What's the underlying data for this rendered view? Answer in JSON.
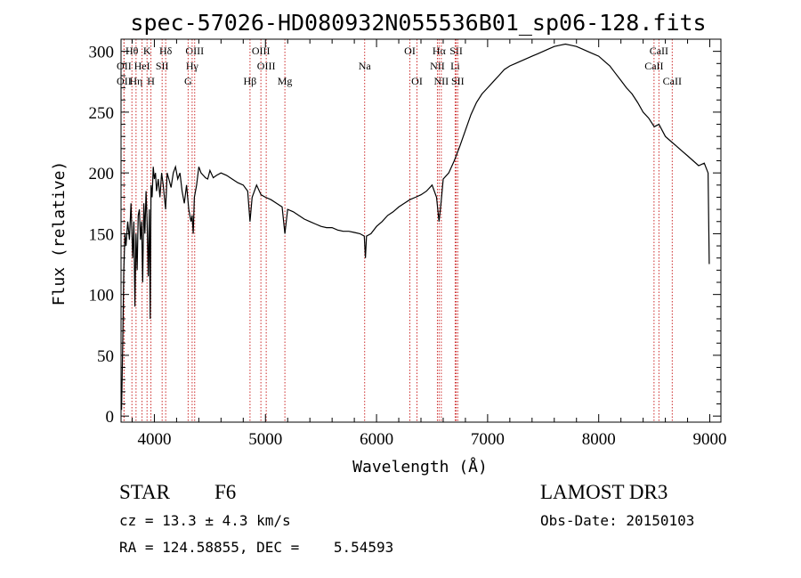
{
  "chart_data": {
    "type": "line",
    "title": "spec-57026-HD080932N055536B01_sp06-128.fits",
    "xlabel": "Wavelength (Å)",
    "ylabel": "Flux (relative)",
    "xlim": [
      3700,
      9100
    ],
    "ylim": [
      -5,
      310
    ],
    "xticks": [
      4000,
      5000,
      6000,
      7000,
      8000,
      9000
    ],
    "yticks": [
      0,
      50,
      100,
      150,
      200,
      250,
      300
    ],
    "spectrum": {
      "name": "flux",
      "x": [
        3705,
        3715,
        3725,
        3735,
        3745,
        3760,
        3775,
        3790,
        3805,
        3815,
        3825,
        3835,
        3845,
        3855,
        3865,
        3875,
        3885,
        3895,
        3905,
        3915,
        3925,
        3935,
        3945,
        3955,
        3963,
        3970,
        3980,
        3990,
        4000,
        4010,
        4020,
        4035,
        4050,
        4065,
        4080,
        4090,
        4101,
        4115,
        4130,
        4150,
        4170,
        4190,
        4210,
        4230,
        4250,
        4270,
        4290,
        4310,
        4330,
        4340,
        4350,
        4360,
        4380,
        4400,
        4420,
        4440,
        4460,
        4480,
        4500,
        4530,
        4560,
        4600,
        4650,
        4700,
        4750,
        4800,
        4840,
        4861,
        4880,
        4920,
        4960,
        5000,
        5050,
        5100,
        5150,
        5175,
        5200,
        5250,
        5300,
        5350,
        5400,
        5450,
        5500,
        5550,
        5600,
        5650,
        5700,
        5750,
        5800,
        5850,
        5890,
        5900,
        5910,
        5950,
        6000,
        6050,
        6100,
        6150,
        6200,
        6250,
        6300,
        6350,
        6400,
        6450,
        6500,
        6540,
        6563,
        6580,
        6600,
        6650,
        6700,
        6750,
        6800,
        6850,
        6900,
        6950,
        7000,
        7050,
        7100,
        7150,
        7200,
        7250,
        7300,
        7350,
        7400,
        7450,
        7500,
        7550,
        7600,
        7650,
        7700,
        7750,
        7800,
        7850,
        7900,
        7950,
        8000,
        8050,
        8100,
        8150,
        8200,
        8250,
        8300,
        8350,
        8400,
        8450,
        8500,
        8542,
        8600,
        8662,
        8700,
        8750,
        8800,
        8850,
        8900,
        8950,
        8985,
        8995
      ],
      "y": [
        5,
        60,
        120,
        150,
        140,
        160,
        145,
        175,
        130,
        160,
        90,
        150,
        120,
        165,
        170,
        145,
        160,
        110,
        175,
        150,
        185,
        160,
        115,
        170,
        80,
        190,
        180,
        205,
        195,
        200,
        185,
        195,
        180,
        200,
        190,
        180,
        170,
        200,
        195,
        188,
        200,
        205,
        195,
        200,
        185,
        175,
        190,
        170,
        160,
        165,
        150,
        180,
        190,
        205,
        200,
        198,
        196,
        195,
        202,
        196,
        198,
        200,
        198,
        195,
        192,
        190,
        185,
        160,
        180,
        190,
        182,
        180,
        178,
        175,
        172,
        150,
        170,
        168,
        165,
        162,
        160,
        158,
        156,
        155,
        155,
        153,
        152,
        152,
        151,
        150,
        148,
        130,
        148,
        150,
        156,
        160,
        165,
        168,
        172,
        175,
        178,
        180,
        182,
        185,
        190,
        180,
        160,
        175,
        195,
        200,
        210,
        222,
        235,
        248,
        258,
        265,
        270,
        275,
        280,
        285,
        288,
        290,
        292,
        294,
        296,
        298,
        300,
        302,
        304,
        305,
        306,
        305,
        304,
        302,
        300,
        298,
        296,
        292,
        288,
        282,
        276,
        270,
        265,
        258,
        250,
        245,
        238,
        240,
        230,
        225,
        222,
        218,
        214,
        210,
        206,
        208,
        200,
        125
      ]
    },
    "emission_line_marks": [
      {
        "label": "Hθ",
        "wavelength": 3798,
        "row": 1
      },
      {
        "label": "OII",
        "wavelength": 3727,
        "row": 2
      },
      {
        "label": "OII",
        "wavelength": 3727,
        "row": 3
      },
      {
        "label": "Hη",
        "wavelength": 3835,
        "row": 3
      },
      {
        "label": "K",
        "wavelength": 3934,
        "row": 1
      },
      {
        "label": "HeI",
        "wavelength": 3889,
        "row": 2
      },
      {
        "label": "H",
        "wavelength": 3969,
        "row": 3
      },
      {
        "label": "SII",
        "wavelength": 4070,
        "row": 2
      },
      {
        "label": "Hδ",
        "wavelength": 4102,
        "row": 1
      },
      {
        "label": "OIII",
        "wavelength": 4363,
        "row": 1
      },
      {
        "label": "Hγ",
        "wavelength": 4340,
        "row": 2
      },
      {
        "label": "G",
        "wavelength": 4304,
        "row": 3
      },
      {
        "label": "Hβ",
        "wavelength": 4861,
        "row": 3
      },
      {
        "label": "OIII",
        "wavelength": 4959,
        "row": 1
      },
      {
        "label": "OIII",
        "wavelength": 5007,
        "row": 2
      },
      {
        "label": "Mg",
        "wavelength": 5175,
        "row": 3
      },
      {
        "label": "Na",
        "wavelength": 5893,
        "row": 2
      },
      {
        "label": "OI",
        "wavelength": 6300,
        "row": 1
      },
      {
        "label": "OI",
        "wavelength": 6364,
        "row": 3
      },
      {
        "label": "Hα",
        "wavelength": 6563,
        "row": 1
      },
      {
        "label": "NII",
        "wavelength": 6548,
        "row": 2
      },
      {
        "label": "NII",
        "wavelength": 6583,
        "row": 3
      },
      {
        "label": "SII",
        "wavelength": 6717,
        "row": 1
      },
      {
        "label": "Li",
        "wavelength": 6708,
        "row": 2
      },
      {
        "label": "SII",
        "wavelength": 6731,
        "row": 3
      },
      {
        "label": "CaII",
        "wavelength": 8542,
        "row": 1
      },
      {
        "label": "CaII",
        "wavelength": 8498,
        "row": 2
      },
      {
        "label": "CaII",
        "wavelength": 8662,
        "row": 3
      }
    ]
  },
  "info": {
    "object_class": "STAR",
    "subclass": "F6",
    "survey": "LAMOST DR3",
    "redshift": "cz = 13.3 ± 4.3 km/s",
    "obs_date": "Obs-Date: 20150103",
    "coords": "RA = 124.58855, DEC =    5.54593"
  }
}
